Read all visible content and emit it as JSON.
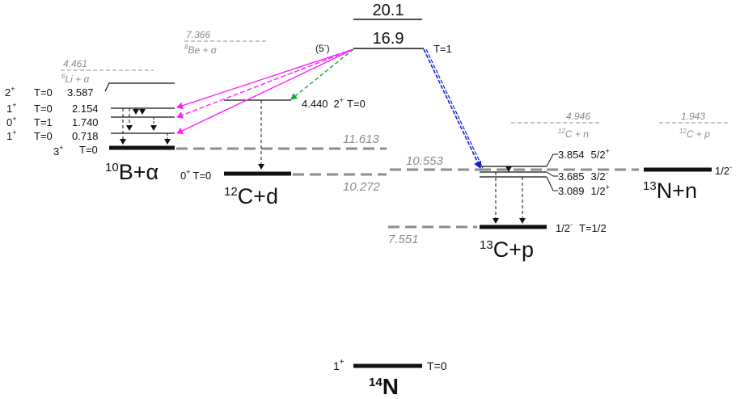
{
  "title_nucleus": {
    "sup": "14",
    "base": "N"
  },
  "ground": {
    "spin": "1",
    "parity": "+",
    "isospin": "T=0"
  },
  "top_levels": {
    "upper": "20.1",
    "lower": "16.9",
    "isospin": "T=1",
    "spin_parity": "(5",
    "spin_parity_close": ")",
    "spin_sign": "-"
  },
  "b10_alpha": {
    "label": {
      "sup": "10",
      "main": "B+α"
    },
    "threshold": "11.613",
    "li6_threshold": "4.461",
    "li6_label": "Li + α",
    "li6_sup": "6",
    "levels": [
      {
        "spin": "2",
        "parity": "+",
        "iso": "T=0",
        "energy": "3.587"
      },
      {
        "spin": "1",
        "parity": "+",
        "iso": "T=0",
        "energy": "2.154"
      },
      {
        "spin": "0",
        "parity": "+",
        "iso": "T=1",
        "energy": "1.740"
      },
      {
        "spin": "1",
        "parity": "+",
        "iso": "T=0",
        "energy": "0.718"
      },
      {
        "spin": "3",
        "parity": "+",
        "iso": "T=0",
        "energy": ""
      }
    ]
  },
  "be8_alpha": {
    "threshold": "7.366",
    "label": "Be + α",
    "sup": "8"
  },
  "c12_d": {
    "label": {
      "sup": "12",
      "main": "C+d"
    },
    "threshold": "10.272",
    "ground": {
      "spin": "0",
      "parity": "+",
      "iso": "T=0"
    },
    "excited": {
      "energy": "4.440",
      "spin": "2",
      "parity": "+",
      "iso": "T=0"
    }
  },
  "c13_p": {
    "label": {
      "sup": "13",
      "main": "C+p"
    },
    "threshold": "7.551",
    "upper_threshold": "10.553",
    "ground": {
      "spin": "1/2",
      "parity": "-",
      "iso": "T=1/2"
    },
    "levels": [
      {
        "energy": "3.854",
        "jp": "5/2",
        "parity": "+"
      },
      {
        "energy": "3.685",
        "jp": "3/2",
        "parity": "-"
      },
      {
        "energy": "3.089",
        "jp": "1/2",
        "parity": "+"
      }
    ]
  },
  "c12_n": {
    "threshold": "4.946",
    "label": "C + n",
    "sup": "12"
  },
  "c12_p": {
    "threshold": "1.943",
    "label": "C + p",
    "sup": "12"
  },
  "n13_n": {
    "label": {
      "sup": "13",
      "main": "N+n"
    },
    "ground": {
      "spin": "1/2",
      "parity": "-"
    }
  },
  "colors": {
    "magenta": "#ff20ff",
    "green": "#1aa34a",
    "blue": "#1020e0",
    "gray": "#8c8c8c",
    "black": "#111111"
  }
}
